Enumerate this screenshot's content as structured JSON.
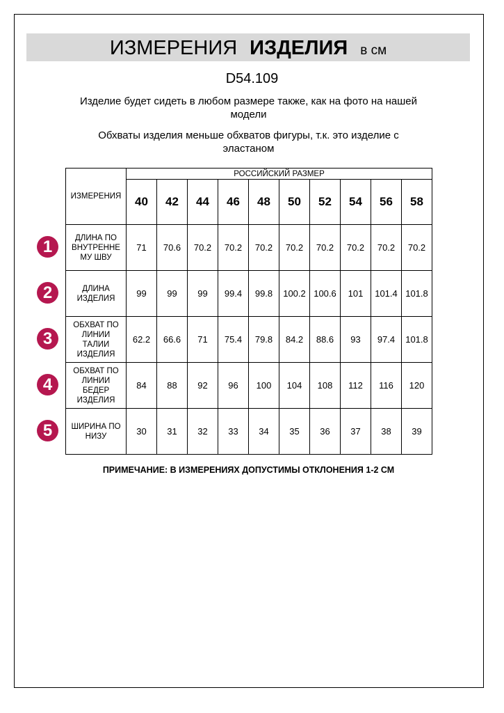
{
  "title": {
    "part1": "ИЗМЕРЕНИЯ",
    "part2": "ИЗДЕЛИЯ",
    "unit": "в см"
  },
  "product_code": "D54.109",
  "notes": [
    "Изделие будет сидеть в любом размере также, как на фото на нашей модели",
    "Обхваты изделия меньше обхватов фигуры, т.к. это изделие с эластаном"
  ],
  "table": {
    "measure_header": "ИЗМЕРЕНИЯ",
    "size_header": "РОССИЙСКИЙ РАЗМЕР",
    "sizes": [
      "40",
      "42",
      "44",
      "46",
      "48",
      "50",
      "52",
      "54",
      "56",
      "58"
    ],
    "rows": [
      {
        "num": "1",
        "label": [
          "ДЛИНА ПО",
          "ВНУТРЕННЕ",
          "МУ ШВУ"
        ],
        "values": [
          "71",
          "70.6",
          "70.2",
          "70.2",
          "70.2",
          "70.2",
          "70.2",
          "70.2",
          "70.2",
          "70.2"
        ]
      },
      {
        "num": "2",
        "label": [
          "ДЛИНА",
          "ИЗДЕЛИЯ"
        ],
        "values": [
          "99",
          "99",
          "99",
          "99.4",
          "99.8",
          "100.2",
          "100.6",
          "101",
          "101.4",
          "101.8"
        ]
      },
      {
        "num": "3",
        "label": [
          "ОБХВАТ ПО",
          "ЛИНИИ",
          "ТАЛИИ",
          "ИЗДЕЛИЯ"
        ],
        "values": [
          "62.2",
          "66.6",
          "71",
          "75.4",
          "79.8",
          "84.2",
          "88.6",
          "93",
          "97.4",
          "101.8"
        ]
      },
      {
        "num": "4",
        "label": [
          "ОБХВАТ ПО",
          "ЛИНИИ",
          "БЕДЕР",
          "ИЗДЕЛИЯ"
        ],
        "values": [
          "84",
          "88",
          "92",
          "96",
          "100",
          "104",
          "108",
          "112",
          "116",
          "120"
        ]
      },
      {
        "num": "5",
        "label": [
          "ШИРИНА ПО",
          "НИЗУ"
        ],
        "values": [
          "30",
          "31",
          "32",
          "33",
          "34",
          "35",
          "36",
          "37",
          "38",
          "39"
        ]
      }
    ]
  },
  "footnote": "ПРИМЕЧАНИЕ: В ИЗМЕРЕНИЯХ ДОПУСТИМЫ ОТКЛОНЕНИЯ 1-2 СМ",
  "colors": {
    "badge": "#b5174f",
    "banner": "#d9d9d9"
  }
}
